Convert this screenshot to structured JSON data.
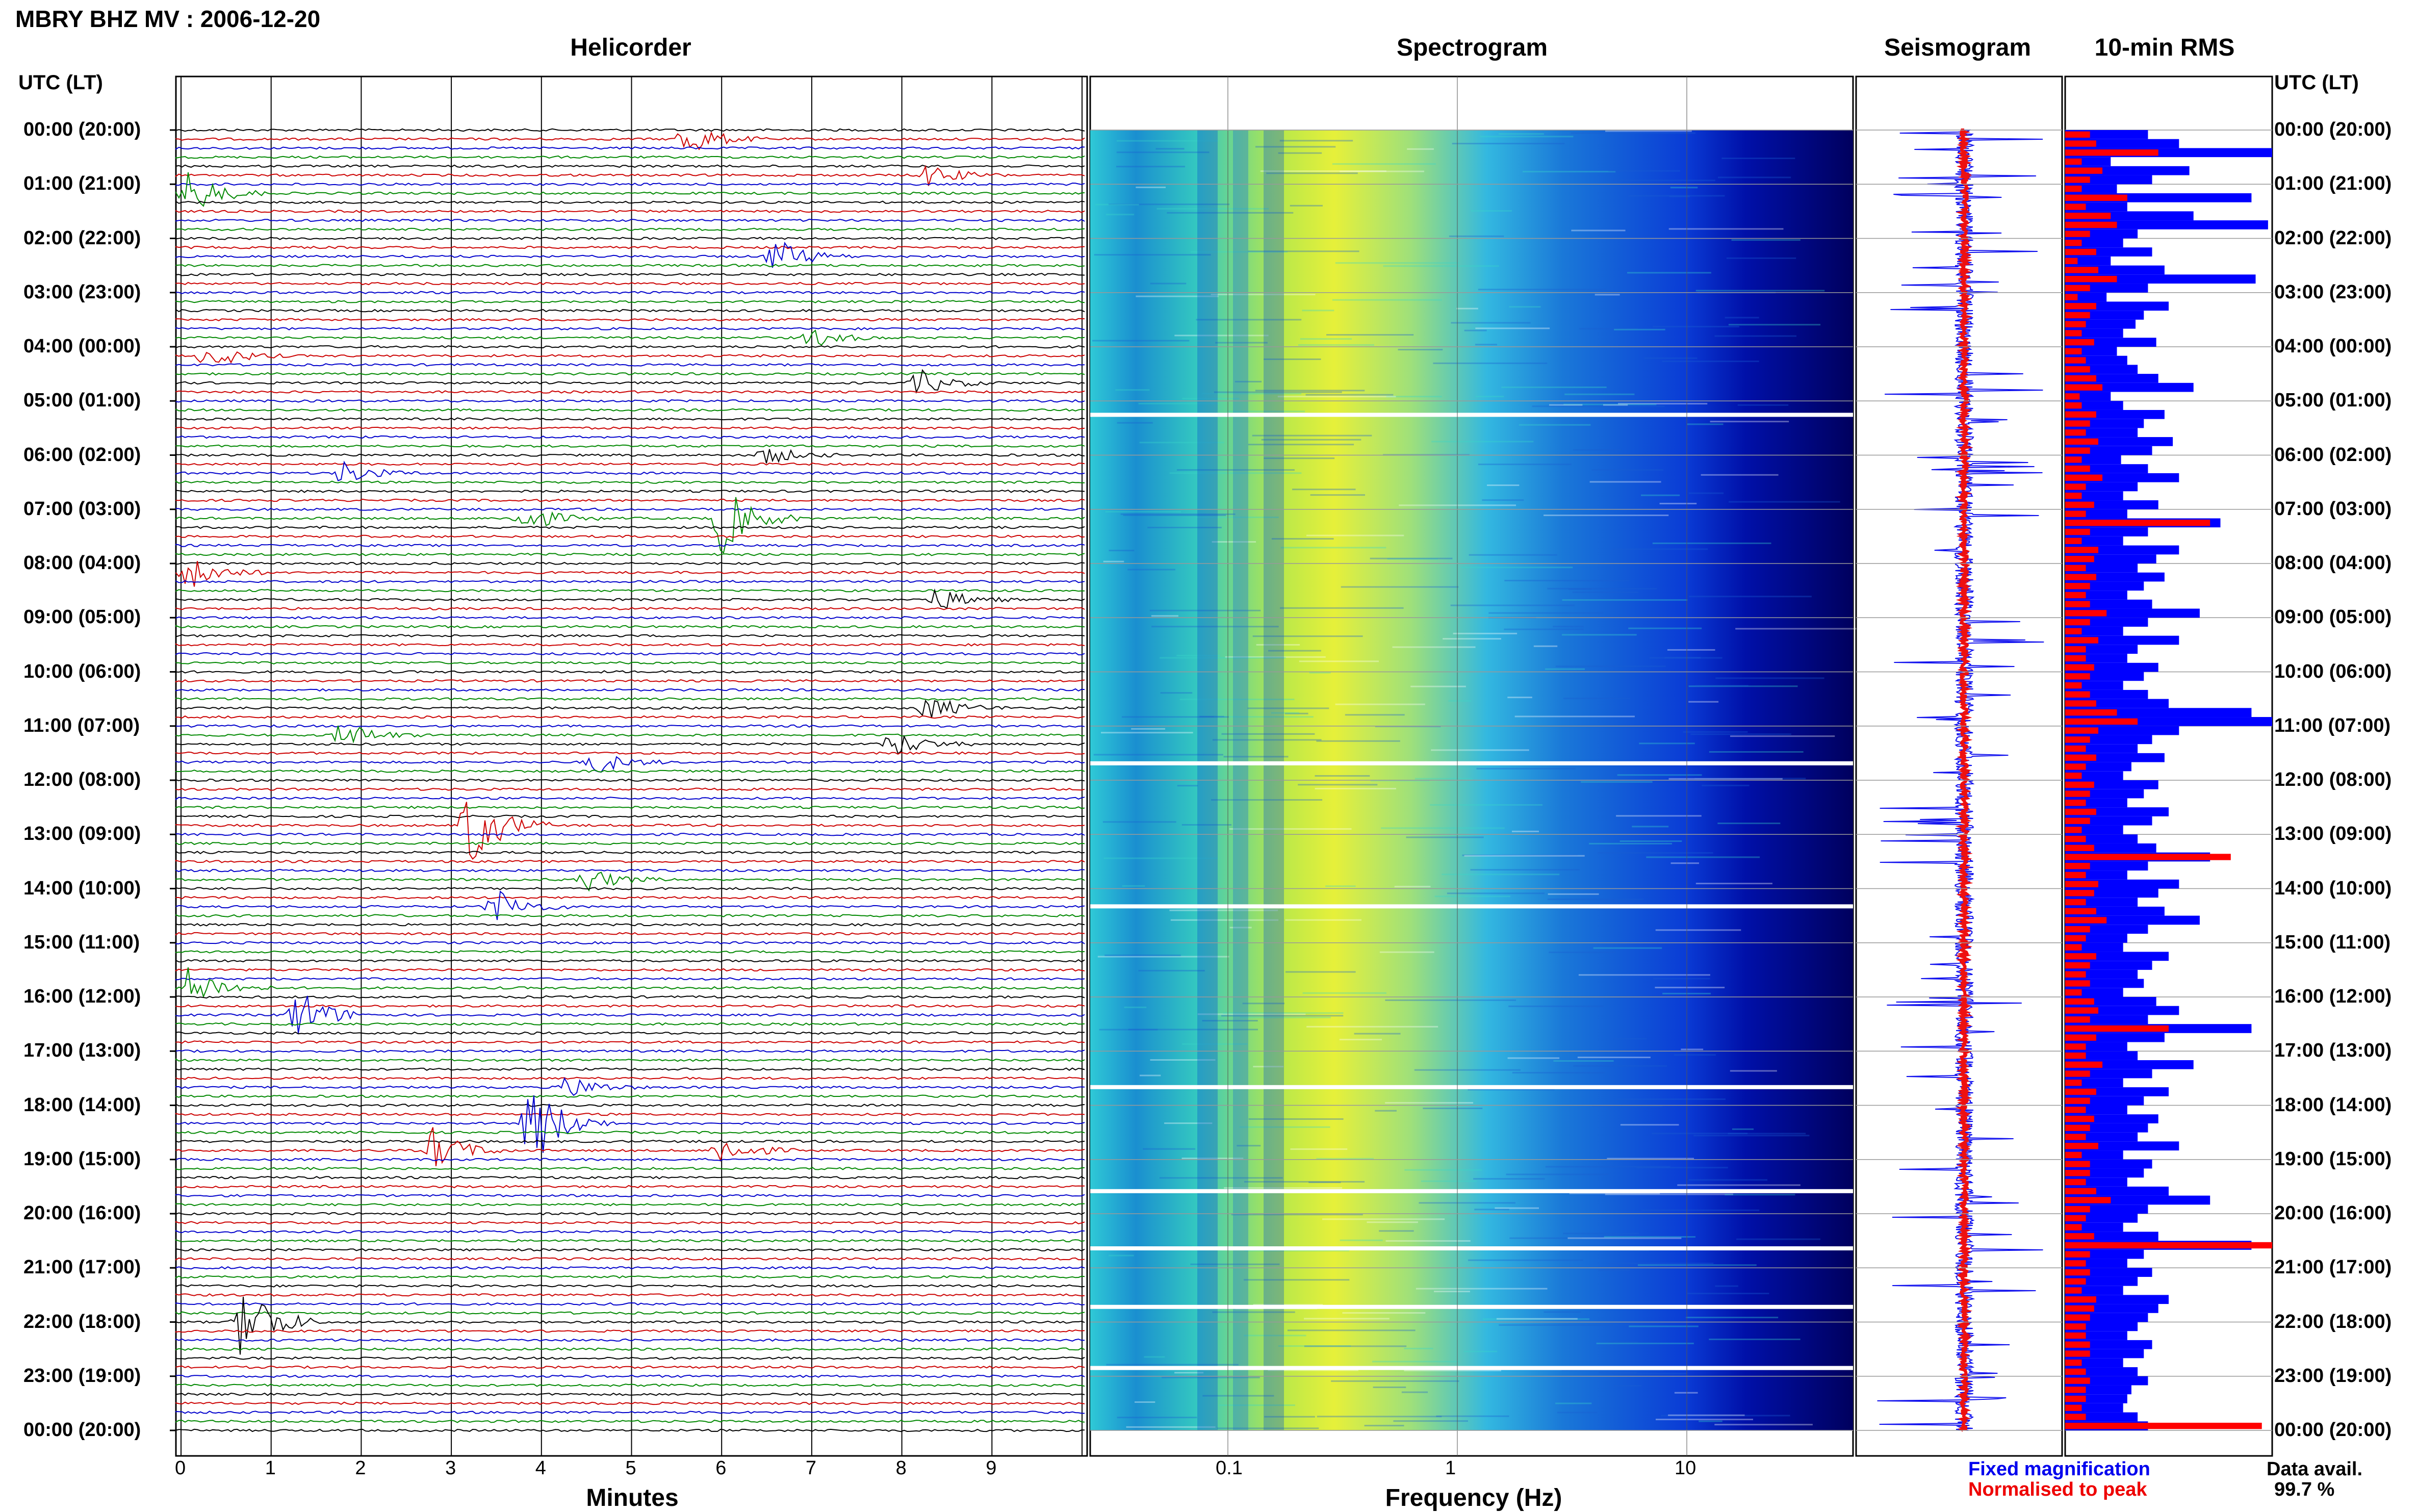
{
  "header": {
    "title": "MBRY BHZ MV : 2006-12-20",
    "utc_label_left": "UTC (LT)",
    "utc_label_right": "UTC (LT)"
  },
  "panels": {
    "helicorder": "Helicorder",
    "spectrogram": "Spectrogram",
    "seismogram": "Seismogram",
    "rms": "10-min RMS"
  },
  "axes": {
    "minutes_label": "Minutes",
    "frequency_label": "Frequency (Hz)",
    "minute_ticks": [
      "0",
      "1",
      "2",
      "3",
      "4",
      "5",
      "6",
      "7",
      "8",
      "9"
    ],
    "frequency_ticks": [
      "0.1",
      "1",
      "10"
    ]
  },
  "time_labels": [
    "00:00 (20:00)",
    "01:00 (21:00)",
    "02:00 (22:00)",
    "03:00 (23:00)",
    "04:00 (00:00)",
    "05:00 (01:00)",
    "06:00 (02:00)",
    "07:00 (03:00)",
    "08:00 (04:00)",
    "09:00 (05:00)",
    "10:00 (06:00)",
    "11:00 (07:00)",
    "12:00 (08:00)",
    "13:00 (09:00)",
    "14:00 (10:00)",
    "15:00 (11:00)",
    "16:00 (12:00)",
    "17:00 (13:00)",
    "18:00 (14:00)",
    "19:00 (15:00)",
    "20:00 (16:00)",
    "21:00 (17:00)",
    "22:00 (18:00)",
    "23:00 (19:00)",
    "00:00 (20:00)"
  ],
  "legend": {
    "fixed": "Fixed magnification",
    "normalised": "Normalised to peak",
    "data_avail_label": "Data avail.",
    "data_avail_value": "99.7 %"
  },
  "colors": {
    "trace_cycle": [
      "#000000",
      "#cc0000",
      "#0000cc",
      "#008800"
    ],
    "rms_fixed": "#0000ff",
    "rms_norm": "#ff0000"
  },
  "chart_data": {
    "type": "bar",
    "title": "10-min RMS",
    "categories_note": "144 ten-minute intervals, 00:00 to 23:50 UTC",
    "series": [
      {
        "name": "Fixed magnification",
        "values": [
          0.4,
          0.55,
          1.0,
          0.22,
          0.6,
          0.42,
          0.25,
          0.9,
          0.3,
          0.62,
          0.98,
          0.35,
          0.28,
          0.42,
          0.22,
          0.48,
          0.92,
          0.4,
          0.2,
          0.5,
          0.38,
          0.34,
          0.28,
          0.44,
          0.25,
          0.3,
          0.35,
          0.45,
          0.62,
          0.22,
          0.28,
          0.48,
          0.38,
          0.35,
          0.52,
          0.42,
          0.27,
          0.4,
          0.55,
          0.35,
          0.28,
          0.45,
          0.3,
          0.75,
          0.4,
          0.28,
          0.55,
          0.44,
          0.35,
          0.48,
          0.38,
          0.3,
          0.42,
          0.65,
          0.4,
          0.28,
          0.55,
          0.35,
          0.3,
          0.45,
          0.38,
          0.28,
          0.4,
          0.5,
          0.9,
          1.0,
          0.55,
          0.42,
          0.35,
          0.48,
          0.32,
          0.28,
          0.45,
          0.38,
          0.3,
          0.5,
          0.42,
          0.28,
          0.35,
          0.44,
          0.7,
          0.4,
          0.3,
          0.55,
          0.45,
          0.35,
          0.48,
          0.65,
          0.4,
          0.3,
          0.28,
          0.5,
          0.42,
          0.35,
          0.38,
          0.28,
          0.44,
          0.55,
          0.4,
          0.9,
          0.48,
          0.3,
          0.35,
          0.62,
          0.42,
          0.28,
          0.5,
          0.38,
          0.3,
          0.45,
          0.4,
          0.35,
          0.55,
          0.28,
          0.42,
          0.38,
          0.3,
          0.5,
          0.7,
          0.4,
          0.35,
          0.28,
          0.45,
          0.9,
          0.38,
          0.3,
          0.42,
          0.35,
          0.28,
          0.5,
          0.45,
          0.4,
          0.35,
          0.3,
          0.42,
          0.38,
          0.28,
          0.35,
          0.4,
          0.32,
          0.3,
          0.28,
          0.35,
          0.4
        ]
      },
      {
        "name": "Normalised to peak",
        "values": [
          0.12,
          0.15,
          0.45,
          0.08,
          0.18,
          0.12,
          0.08,
          0.3,
          0.1,
          0.22,
          0.25,
          0.12,
          0.08,
          0.15,
          0.06,
          0.16,
          0.25,
          0.12,
          0.06,
          0.15,
          0.12,
          0.1,
          0.08,
          0.14,
          0.08,
          0.1,
          0.12,
          0.15,
          0.18,
          0.07,
          0.08,
          0.15,
          0.12,
          0.1,
          0.16,
          0.12,
          0.08,
          0.12,
          0.18,
          0.1,
          0.08,
          0.14,
          0.1,
          0.7,
          0.12,
          0.08,
          0.16,
          0.14,
          0.1,
          0.15,
          0.12,
          0.1,
          0.12,
          0.2,
          0.12,
          0.08,
          0.16,
          0.1,
          0.1,
          0.14,
          0.12,
          0.08,
          0.12,
          0.15,
          0.25,
          0.35,
          0.16,
          0.12,
          0.1,
          0.15,
          0.1,
          0.08,
          0.14,
          0.12,
          0.1,
          0.15,
          0.12,
          0.08,
          0.1,
          0.14,
          0.8,
          0.12,
          0.1,
          0.16,
          0.14,
          0.1,
          0.15,
          0.2,
          0.12,
          0.1,
          0.08,
          0.15,
          0.12,
          0.1,
          0.12,
          0.08,
          0.14,
          0.16,
          0.12,
          0.5,
          0.15,
          0.1,
          0.1,
          0.18,
          0.12,
          0.08,
          0.15,
          0.12,
          0.1,
          0.14,
          0.12,
          0.1,
          0.16,
          0.08,
          0.12,
          0.12,
          0.1,
          0.15,
          0.22,
          0.12,
          0.1,
          0.08,
          0.14,
          1.0,
          0.12,
          0.1,
          0.12,
          0.1,
          0.08,
          0.15,
          0.14,
          0.12,
          0.1,
          0.1,
          0.12,
          0.12,
          0.08,
          0.1,
          0.12,
          0.1,
          0.1,
          0.08,
          0.1,
          0.95
        ]
      }
    ],
    "xlabel": "",
    "ylabel": "",
    "helicorder_events": [
      {
        "row": 1,
        "minute": 5.6,
        "amp": 2.0
      },
      {
        "row": 5,
        "minute": 8.3,
        "amp": 1.2
      },
      {
        "row": 7,
        "minute": 0.1,
        "amp": 2.5
      },
      {
        "row": 14,
        "minute": 6.6,
        "amp": 2.0
      },
      {
        "row": 23,
        "minute": 7.0,
        "amp": 1.0
      },
      {
        "row": 25,
        "minute": 0.3,
        "amp": 1.5
      },
      {
        "row": 28,
        "minute": 8.2,
        "amp": 1.4
      },
      {
        "row": 36,
        "minute": 6.5,
        "amp": 1.0
      },
      {
        "row": 38,
        "minute": 1.8,
        "amp": 1.3
      },
      {
        "row": 43,
        "minute": 3.8,
        "amp": 1.6
      },
      {
        "row": 43,
        "minute": 6.0,
        "amp": 4.0
      },
      {
        "row": 49,
        "minute": 0.1,
        "amp": 2.0
      },
      {
        "row": 52,
        "minute": 8.4,
        "amp": 1.3
      },
      {
        "row": 64,
        "minute": 8.3,
        "amp": 1.4
      },
      {
        "row": 67,
        "minute": 1.8,
        "amp": 1.5
      },
      {
        "row": 68,
        "minute": 7.9,
        "amp": 1.5
      },
      {
        "row": 70,
        "minute": 4.6,
        "amp": 1.3
      },
      {
        "row": 77,
        "minute": 3.2,
        "amp": 5.0
      },
      {
        "row": 83,
        "minute": 4.5,
        "amp": 1.4
      },
      {
        "row": 86,
        "minute": 3.5,
        "amp": 2.0
      },
      {
        "row": 95,
        "minute": 0.1,
        "amp": 2.5
      },
      {
        "row": 98,
        "minute": 1.3,
        "amp": 3.0
      },
      {
        "row": 106,
        "minute": 4.3,
        "amp": 1.3
      },
      {
        "row": 110,
        "minute": 3.9,
        "amp": 5.0
      },
      {
        "row": 113,
        "minute": 6.0,
        "amp": 1.6
      },
      {
        "row": 113,
        "minute": 2.8,
        "amp": 2.5
      },
      {
        "row": 132,
        "minute": 0.7,
        "amp": 5.0
      }
    ]
  }
}
